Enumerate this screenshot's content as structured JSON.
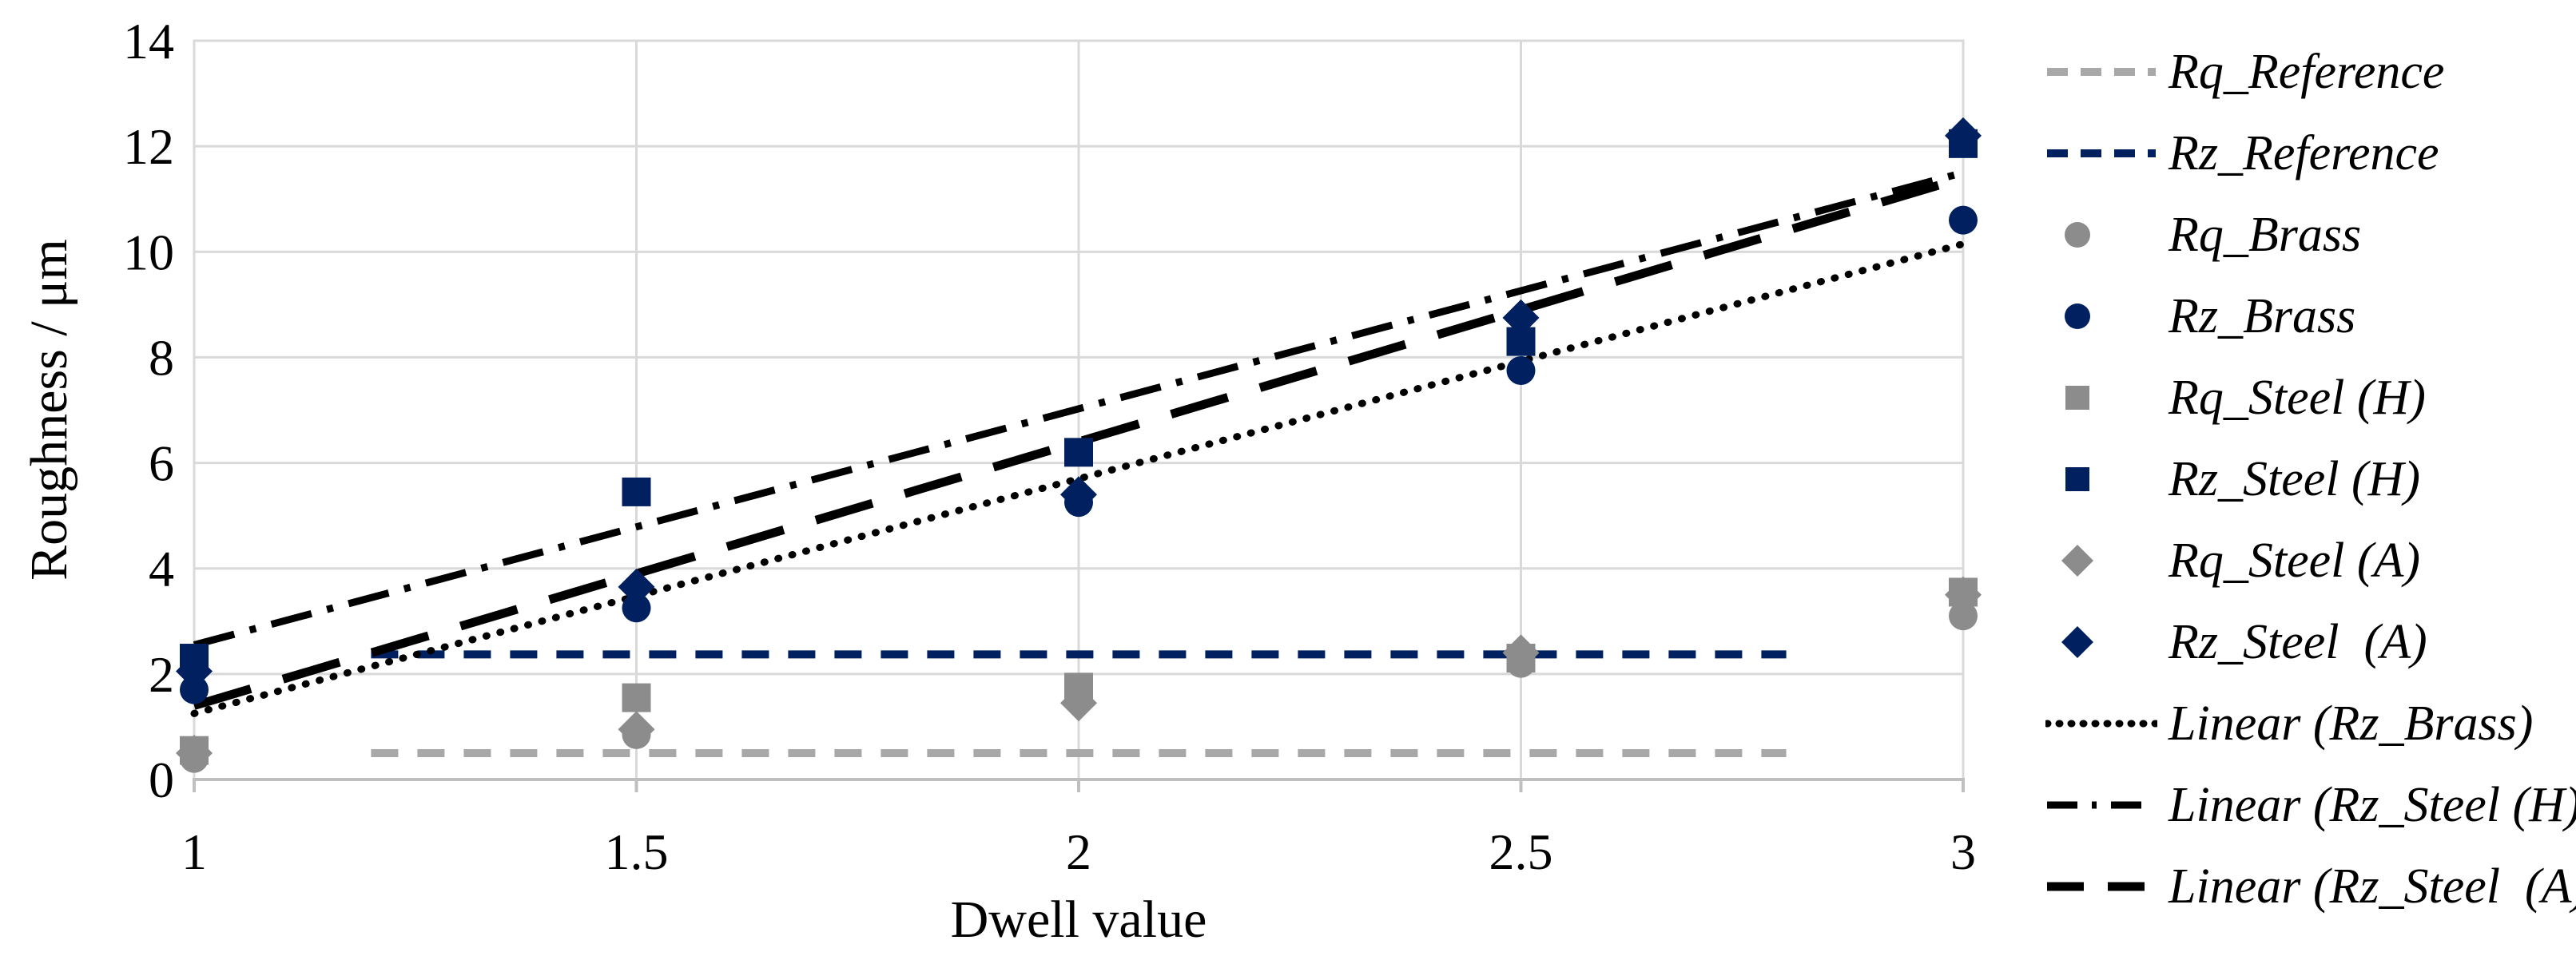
{
  "figure": {
    "background": "#ffffff"
  },
  "colors": {
    "navy": "#002060",
    "gray_marker": "#8c8c8c",
    "gray_line": "#a8a8a8",
    "black": "#000000",
    "gridline": "#d9d9d9",
    "axis": "#bfbfbf",
    "text": "#000000"
  },
  "chart_data": {
    "type": "scatter",
    "title": "",
    "xlabel": "Dwell value",
    "ylabel": "Roughness / μm",
    "xlim": [
      1,
      3
    ],
    "ylim": [
      0,
      14
    ],
    "x_ticks": [
      1,
      1.5,
      2,
      2.5,
      3
    ],
    "y_ticks": [
      0,
      2,
      4,
      6,
      8,
      10,
      12,
      14
    ],
    "grid": true,
    "legend_position": "right",
    "x": [
      1,
      1.5,
      2,
      2.5,
      3
    ],
    "series": [
      {
        "name": "Rq_Brass",
        "marker": "circle",
        "color": "gray_marker",
        "values": [
          0.4,
          0.85,
          1.5,
          2.2,
          3.1
        ]
      },
      {
        "name": "Rz_Brass",
        "marker": "circle",
        "color": "navy",
        "values": [
          1.7,
          3.25,
          5.25,
          7.75,
          10.6
        ]
      },
      {
        "name": "Rq_Steel (H)",
        "marker": "square",
        "color": "gray_marker",
        "values": [
          0.55,
          1.55,
          1.75,
          2.3,
          3.55
        ]
      },
      {
        "name": "Rz_Steel (H)",
        "marker": "square",
        "color": "navy",
        "values": [
          2.3,
          5.45,
          6.2,
          8.3,
          12.05
        ]
      },
      {
        "name": "Rq_Steel (A)",
        "marker": "diamond",
        "color": "gray_marker",
        "values": [
          0.5,
          0.95,
          1.45,
          2.4,
          3.5
        ]
      },
      {
        "name": "Rz_Steel  (A)",
        "marker": "diamond",
        "color": "navy",
        "values": [
          2.05,
          3.65,
          5.4,
          8.75,
          12.2
        ]
      }
    ],
    "reference_lines": [
      {
        "name": "Rq_Reference",
        "y": 0.5,
        "x1": 1.2,
        "x2": 2.8,
        "color": "gray_line",
        "dash": "dash"
      },
      {
        "name": "Rz_Reference",
        "y": 2.37,
        "x1": 1.2,
        "x2": 2.8,
        "color": "navy",
        "dash": "dash"
      }
    ],
    "trendlines": [
      {
        "name": "Linear (Rz_Brass)",
        "x1": 1,
        "y1": 1.25,
        "x2": 3,
        "y2": 10.15,
        "color": "black",
        "dash": "dot"
      },
      {
        "name": "Linear (Rz_Steel (H))",
        "x1": 1,
        "y1": 2.55,
        "x2": 3,
        "y2": 11.5,
        "color": "black",
        "dash": "dashdot"
      },
      {
        "name": "Linear (Rz_Steel  (A))",
        "x1": 1,
        "y1": 1.4,
        "x2": 3,
        "y2": 11.4,
        "color": "black",
        "dash": "longdash"
      }
    ]
  },
  "legend": {
    "items": [
      {
        "label": "Rq_Reference",
        "swatch": "line",
        "dash": "dash",
        "color": "gray_line"
      },
      {
        "label": "Rz_Reference",
        "swatch": "line",
        "dash": "dash",
        "color": "navy"
      },
      {
        "label": "Rq_Brass",
        "swatch": "circle",
        "dash": "none",
        "color": "gray_marker"
      },
      {
        "label": "Rz_Brass",
        "swatch": "circle",
        "dash": "none",
        "color": "navy"
      },
      {
        "label": "Rq_Steel (H)",
        "swatch": "square",
        "dash": "none",
        "color": "gray_marker"
      },
      {
        "label": "Rz_Steel (H)",
        "swatch": "square",
        "dash": "none",
        "color": "navy"
      },
      {
        "label": "Rq_Steel (A)",
        "swatch": "diamond",
        "dash": "none",
        "color": "gray_marker"
      },
      {
        "label": "Rz_Steel  (A)",
        "swatch": "diamond",
        "dash": "none",
        "color": "navy"
      },
      {
        "label": "Linear (Rz_Brass)",
        "swatch": "line",
        "dash": "dot",
        "color": "black"
      },
      {
        "label": "Linear (Rz_Steel (H))",
        "swatch": "line",
        "dash": "dashdot",
        "color": "black"
      },
      {
        "label": "Linear (Rz_Steel  (A))",
        "swatch": "line",
        "dash": "longdash",
        "color": "black"
      }
    ]
  }
}
